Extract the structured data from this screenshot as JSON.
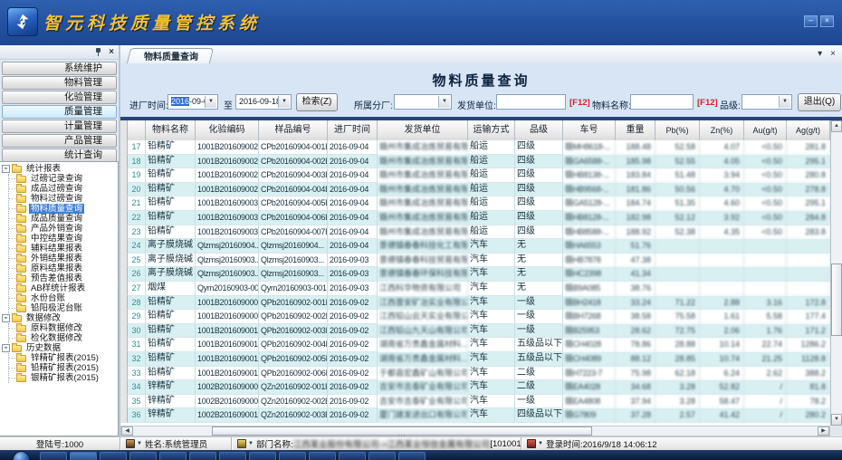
{
  "window": {
    "title": "智元科技质量管控系统",
    "minimize": "–",
    "close": "×"
  },
  "glyphs": {
    "dropdown": "▼",
    "tab_menu": "▾",
    "close": "×",
    "scroll_up": "▲",
    "scroll_down": "▼",
    "scroll_left": "◀",
    "scroll_right": "▶",
    "expander_collapse": "-",
    "grip": "|||"
  },
  "sidebar": {
    "modules": [
      {
        "label": "系统维护",
        "selected": false
      },
      {
        "label": "物料管理",
        "selected": false
      },
      {
        "label": "化验管理",
        "selected": false
      },
      {
        "label": "质量管理",
        "selected": true
      },
      {
        "label": "计量管理",
        "selected": false
      },
      {
        "label": "产品管理",
        "selected": false
      },
      {
        "label": "统计查询",
        "selected": false
      }
    ],
    "selected_item": "物料质量查询",
    "tree": [
      {
        "label": "统计报表",
        "children": [
          "过磅记录查询",
          "成品过磅查询",
          "物料过磅查询",
          "物料质量查询",
          "成品质量查询",
          "产品外销查询",
          "中控结果查询",
          "辅料结果报表",
          "外销结果报表",
          "原料结果报表",
          "预告差值报表",
          "AB样统计报表",
          "水份台账",
          "铅阳极泥台账"
        ]
      },
      {
        "label": "数据修改",
        "children": [
          "原料数据修改",
          "检化数据修改"
        ]
      },
      {
        "label": "历史数据",
        "children": [
          "锌精矿报表(2015)",
          "铅精矿报表(2015)",
          "银精矿报表(2015)"
        ]
      }
    ]
  },
  "tabs": {
    "active": "物料质量查询"
  },
  "query": {
    "title": "物料质量查询",
    "entry_time_label": "进厂时间:",
    "date_from_year": "2016",
    "date_from_rest": "-09-01",
    "to_label": "至",
    "date_to": "2016-09-18",
    "search_label": "检索(Z)",
    "factory_label": "所属分厂:",
    "shipper_label": "发货单位:",
    "f12_hint": "[F12]",
    "material_label": "物料名称:",
    "grade_label": "品级:",
    "exit_label": "退出(Q)"
  },
  "table": {
    "columns": [
      "",
      "",
      "物料名称",
      "化验编码",
      "样品编号",
      "进厂时间",
      "发货单位",
      "运输方式",
      "品级",
      "车号",
      "重量",
      "Pb(%)",
      "Zn(%)",
      "Au(g/t)",
      "Ag(g/t)"
    ],
    "rows": [
      [
        "17",
        "铅精矿",
        "1001B2016090022",
        "CPb20160904-001B",
        "2016-09-04",
        "赣州市集成冶炼贸易有限公司",
        "船运",
        "四级",
        "赣MH8618-...",
        "188.48",
        "52.58",
        "4.07",
        "<0.50",
        "281.8"
      ],
      [
        "18",
        "铅精矿",
        "1001B2016090024",
        "CPb20160904-002B",
        "2016-09-04",
        "赣州市集成冶炼贸易有限公司",
        "船运",
        "四级",
        "赣GA6588-...",
        "185.98",
        "52.55",
        "4.05",
        "<0.50",
        "295.1"
      ],
      [
        "19",
        "铅精矿",
        "1001B2016090026",
        "CPb20160904-003B",
        "2016-09-04",
        "赣州市集成冶炼贸易有限公司",
        "船运",
        "四级",
        "赣HB8138-...",
        "183.84",
        "51.48",
        "3.94",
        "<0.50",
        "280.8"
      ],
      [
        "20",
        "铅精矿",
        "1001B2016090028",
        "CPb20160904-004B",
        "2016-09-04",
        "赣州市集成冶炼贸易有限公司",
        "船运",
        "四级",
        "赣HB9568-...",
        "181.86",
        "50.56",
        "4.70",
        "<0.50",
        "278.8"
      ],
      [
        "21",
        "铅精矿",
        "1001B2016090030",
        "CPb20160904-005B",
        "2016-09-04",
        "赣州市集成冶炼贸易有限公司",
        "船运",
        "四级",
        "赣GA5128-...",
        "184.74",
        "51.35",
        "4.60",
        "<0.50",
        "295.1"
      ],
      [
        "22",
        "铅精矿",
        "1001B2016090032",
        "CPb20160904-006B",
        "2016-09-04",
        "赣州市集成冶炼贸易有限公司",
        "船运",
        "四级",
        "赣HB8128-...",
        "182.98",
        "52.12",
        "3.92",
        "<0.50",
        "284.8"
      ],
      [
        "23",
        "铅精矿",
        "1001B2016090034",
        "CPb20160904-007B",
        "2016-09-04",
        "赣州市集成冶炼贸易有限公司",
        "船运",
        "四级",
        "赣HB8588-...",
        "188.92",
        "52.38",
        "4.35",
        "<0.50",
        "283.8"
      ],
      [
        "24",
        "离子膜烧碱",
        "Qlzmsj20160904...",
        "Qlzmsj20160904...",
        "2016-09-04",
        "景德镇春春科技化工有限公司",
        "汽车",
        "无",
        "赣HA6553",
        "51.76",
        "",
        "",
        "",
        ""
      ],
      [
        "25",
        "离子膜烧碱",
        "Qlzmsj20160903...",
        "Qlzmsj20160903...",
        "2016-09-03",
        "景德镇春春科技贸易有限公司",
        "汽车",
        "无",
        "赣HB7878",
        "47.38",
        "",
        "",
        "",
        ""
      ],
      [
        "26",
        "离子膜烧碱",
        "Qlzmsj20160903...",
        "Qlzmsj20160903...",
        "2016-09-03",
        "景德镇春春环保科技有限公司",
        "汽车",
        "无",
        "赣HC2398",
        "41.34",
        "",
        "",
        "",
        ""
      ],
      [
        "27",
        "烟煤",
        "Qym20160903-001",
        "Qym20160903-001",
        "2016-09-03",
        "江西科华物资有限公司",
        "汽车",
        "无",
        "赣B9A085",
        "38.76",
        "",
        "",
        "",
        ""
      ],
      [
        "28",
        "铅精矿",
        "1001B2016090006",
        "QPb20160902-001B",
        "2016-09-02",
        "江西晋安矿冶实业有限公司",
        "汽车",
        "一级",
        "赣BH2418",
        "33.24",
        "71.22",
        "2.88",
        "3.16",
        "172.8"
      ],
      [
        "29",
        "铅精矿",
        "1001B2016090008",
        "QPb20160902-002B",
        "2016-09-02",
        "江西铅山云天实业有限公司",
        "汽车",
        "一级",
        "赣BH7268",
        "38.58",
        "75.58",
        "1.61",
        "5.58",
        "177.4"
      ],
      [
        "30",
        "铅精矿",
        "1001B2016090010",
        "QPb20160902-003B",
        "2016-09-02",
        "江西铅山九天山有限公司",
        "汽车",
        "一级",
        "赣B25953",
        "28.62",
        "72.75",
        "2.06",
        "1.76",
        "171.2"
      ],
      [
        "31",
        "铅精矿",
        "1001B2016090012",
        "QPb20160902-004B",
        "2016-09-02",
        "湖南省万贵鑫金属材料...",
        "汽车",
        "五级品以下",
        "赣CH4028",
        "78.86",
        "28.88",
        "10.14",
        "22.74",
        "1286.2"
      ],
      [
        "32",
        "铅精矿",
        "1001B2016090014",
        "QPb20160902-005B",
        "2016-09-02",
        "湖南省万贵鑫金属材料...",
        "汽车",
        "五级品以下",
        "赣CH4089",
        "88.12",
        "28.85",
        "10.74",
        "21.25",
        "1128.8"
      ],
      [
        "33",
        "铅精矿",
        "1001B2016090016",
        "QPb20160902-006B",
        "2016-09-02",
        "于都县宏鑫矿山有限公司",
        "汽车",
        "二级",
        "赣H7223-7",
        "75.98",
        "62.18",
        "6.24",
        "2.62",
        "388.2"
      ],
      [
        "34",
        "锌精矿",
        "1002B2016090006",
        "QZn20160902-001B",
        "2016-09-02",
        "吉安市吉泰矿业有限公司",
        "汽车",
        "二级",
        "赣EA4028",
        "34.68",
        "3.28",
        "52.82",
        "/",
        "81.8"
      ],
      [
        "35",
        "锌精矿",
        "1002B2016090008",
        "QZn20160902-002B",
        "2016-09-02",
        "吉安市吉泰矿业有限公司",
        "汽车",
        "一级",
        "赣EA4808",
        "37.94",
        "3.28",
        "58.47",
        "/",
        "78.2"
      ],
      [
        "36",
        "锌精矿",
        "1002B2016090010",
        "QZn20160902-003B",
        "2016-09-02",
        "厦门建发进出口有限公司",
        "汽车",
        "四级品以下",
        "赣G7809",
        "37.28",
        "2.57",
        "41.42",
        "/",
        "280.2"
      ]
    ]
  },
  "statusbar": {
    "login": "登陆号:1000",
    "name": "姓名:系统管理员",
    "dept_prefix": "部门名称:",
    "dept_blurred": "江西某业股份有限公司->江西某业恒信金属有限公司",
    "dept_suffix": "[10100198]",
    "login_time": "登录时间:2016/9/18 14:06:12"
  },
  "taskbar": {
    "button_count": 13
  }
}
